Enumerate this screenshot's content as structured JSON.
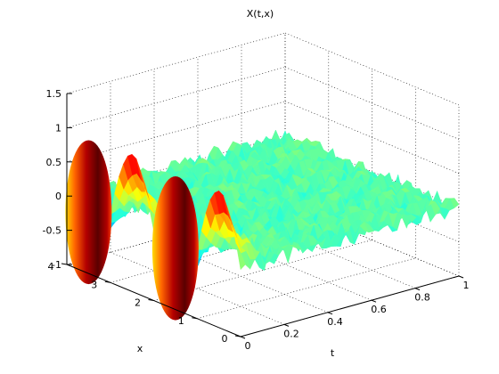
{
  "chart_data": {
    "type": "surface",
    "title": "X(t,x)",
    "xlabel": "t",
    "ylabel": "x",
    "zlabel": "",
    "xlim": [
      0,
      1
    ],
    "ylim": [
      0,
      4
    ],
    "zlim": [
      -1,
      1.5
    ],
    "xticks": [
      "0",
      "0.2",
      "0.4",
      "0.6",
      "0.8",
      "1"
    ],
    "yticks": [
      "0",
      "1",
      "2",
      "3",
      "4"
    ],
    "zticks": [
      "-1",
      "-0.5",
      "0",
      "0.5",
      "1",
      "1.5"
    ],
    "grid": true,
    "colormap": "jet",
    "description_values": {
      "initial_profile": "sin(pi*x) at t=0, peaks approx 1.0 at x=0.5, 1.5, 2.5, 3.5",
      "later_values_range": [
        -0.35,
        0.35
      ]
    }
  }
}
